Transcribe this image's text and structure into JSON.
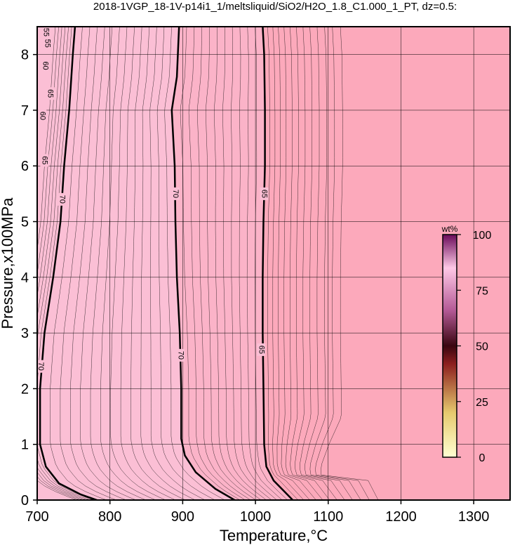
{
  "chart_data": {
    "type": "heatmap",
    "title": "2018-1VGP_18-1V-p14i1_1/meltsliquid/SiO2/H2O_1.8_C1.000_1_PT, dz=0.5:",
    "xlabel": "Temperature,°C",
    "ylabel": "Pressure,x100MPa",
    "xlim": [
      700,
      1350
    ],
    "ylim": [
      0,
      8.5
    ],
    "x_ticks": [
      700,
      800,
      900,
      1000,
      1100,
      1200,
      1300
    ],
    "y_ticks": [
      0,
      1,
      2,
      3,
      4,
      5,
      6,
      7,
      8
    ],
    "grid": true,
    "colorbar": {
      "title": "wt%",
      "range": [
        0,
        100
      ],
      "ticks": [
        0,
        25,
        50,
        75,
        100
      ]
    },
    "contour_labels": [
      {
        "text": "70",
        "T": 734,
        "P": 5.4
      },
      {
        "text": "70",
        "T": 705,
        "P": 2.4
      },
      {
        "text": "70",
        "T": 890,
        "P": 5.5
      },
      {
        "text": "70",
        "T": 897,
        "P": 2.6
      },
      {
        "text": "65",
        "T": 1012,
        "P": 5.5
      },
      {
        "text": "65",
        "T": 1008,
        "P": 2.7
      },
      {
        "text": "65",
        "T": 710,
        "P": 6.1
      },
      {
        "text": "65",
        "T": 718,
        "P": 7.3
      },
      {
        "text": "60",
        "T": 707,
        "P": 6.9
      },
      {
        "text": "60",
        "T": 711,
        "P": 7.8
      },
      {
        "text": "55",
        "T": 714,
        "P": 8.2
      },
      {
        "text": "55",
        "T": 712,
        "P": 8.4
      }
    ],
    "major_contours": [
      {
        "level": 70,
        "points": [
          [
            793,
            -0.05
          ],
          [
            760,
            0.1
          ],
          [
            730,
            0.3
          ],
          [
            712,
            0.6
          ],
          [
            704,
            1.0
          ],
          [
            704,
            2.0
          ],
          [
            710,
            3.0
          ],
          [
            722,
            4.0
          ],
          [
            732,
            5.0
          ],
          [
            737,
            6.0
          ],
          [
            744,
            7.0
          ],
          [
            749,
            8.0
          ],
          [
            752,
            8.5
          ]
        ]
      },
      {
        "level": 70,
        "points": [
          [
            978,
            -0.05
          ],
          [
            945,
            0.2
          ],
          [
            918,
            0.5
          ],
          [
            903,
            0.8
          ],
          [
            898,
            1.1
          ],
          [
            898,
            2.0
          ],
          [
            896,
            3.0
          ],
          [
            892,
            4.0
          ],
          [
            890,
            5.0
          ],
          [
            889,
            6.0
          ],
          [
            885,
            7.0
          ],
          [
            892,
            7.6
          ],
          [
            895,
            8.5
          ]
        ]
      },
      {
        "level": 65,
        "points": [
          [
            1055,
            -0.05
          ],
          [
            1040,
            0.15
          ],
          [
            1025,
            0.35
          ],
          [
            1015,
            0.6
          ],
          [
            1012,
            1.0
          ],
          [
            1011,
            2.0
          ],
          [
            1010,
            3.0
          ],
          [
            1010,
            4.0
          ],
          [
            1011,
            5.0
          ],
          [
            1013,
            6.0
          ],
          [
            1013,
            7.0
          ],
          [
            1012,
            8.0
          ],
          [
            1010,
            8.5
          ]
        ]
      }
    ]
  }
}
